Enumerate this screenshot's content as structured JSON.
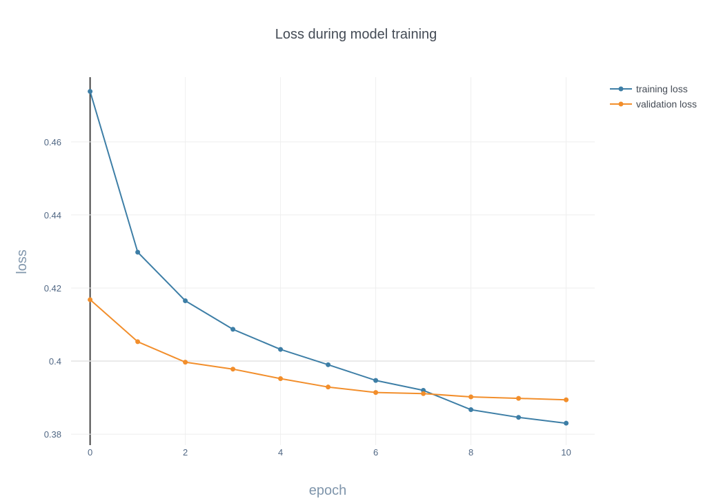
{
  "chart_data": {
    "type": "line",
    "title": "Loss during model training",
    "xlabel": "epoch",
    "ylabel": "loss",
    "x": [
      0,
      1,
      2,
      3,
      4,
      5,
      6,
      7,
      8,
      9,
      10
    ],
    "xlim": [
      -0.4,
      10.6
    ],
    "ylim": [
      0.377,
      0.4777
    ],
    "x_ticks": [
      0,
      2,
      4,
      6,
      8,
      10
    ],
    "x_tick_labels": [
      "0",
      "2",
      "4",
      "6",
      "8",
      "10"
    ],
    "y_ticks": [
      0.38,
      0.4,
      0.42,
      0.44,
      0.46
    ],
    "y_tick_labels": [
      "0.38",
      "0.4",
      "0.42",
      "0.44",
      "0.46"
    ],
    "grid": true,
    "legend_position": "top-right",
    "series": [
      {
        "name": "training loss",
        "color": "#3d7ea6",
        "values": [
          0.4738,
          0.4298,
          0.4165,
          0.4087,
          0.4032,
          0.399,
          0.3947,
          0.392,
          0.3867,
          0.3846,
          0.383
        ]
      },
      {
        "name": "validation loss",
        "color": "#f28e2b",
        "values": [
          0.4168,
          0.4053,
          0.3997,
          0.3978,
          0.3952,
          0.3929,
          0.3914,
          0.3911,
          0.3902,
          0.3898,
          0.3894
        ]
      }
    ]
  }
}
